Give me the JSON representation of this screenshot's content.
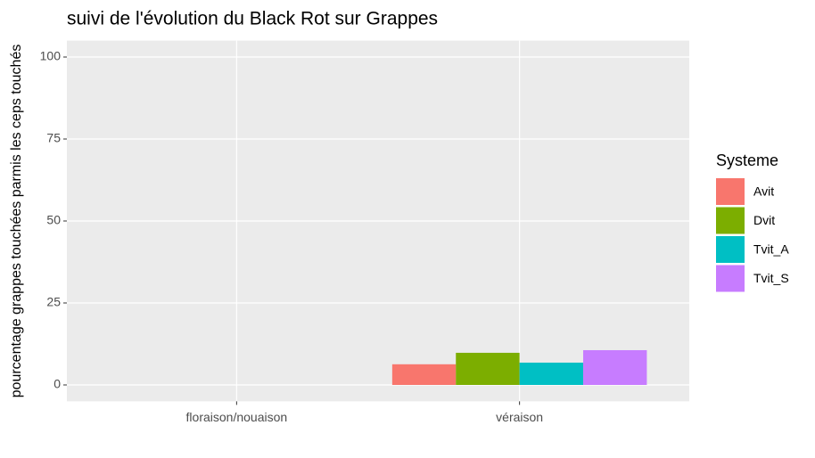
{
  "chart_data": {
    "type": "bar",
    "title": "suivi de l'évolution du Black Rot sur Grappes",
    "y_label": "pourcentage grappes touchées parmis les ceps touchés",
    "legend_title": "Systeme",
    "categories": [
      "floraison/nouaison",
      "véraison"
    ],
    "series": [
      {
        "name": "Avit",
        "color": "#F8766D",
        "values": [
          0,
          6.3
        ]
      },
      {
        "name": "Dvit",
        "color": "#7CAE00",
        "values": [
          0,
          9.8
        ]
      },
      {
        "name": "Tvit_A",
        "color": "#00BFC4",
        "values": [
          0,
          6.8
        ]
      },
      {
        "name": "Tvit_S",
        "color": "#C77CFF",
        "values": [
          0,
          10.6
        ]
      }
    ],
    "ylim": [
      -5,
      105
    ],
    "yticks": [
      0,
      25,
      50,
      75,
      100
    ],
    "grid": true,
    "legend": "right"
  }
}
